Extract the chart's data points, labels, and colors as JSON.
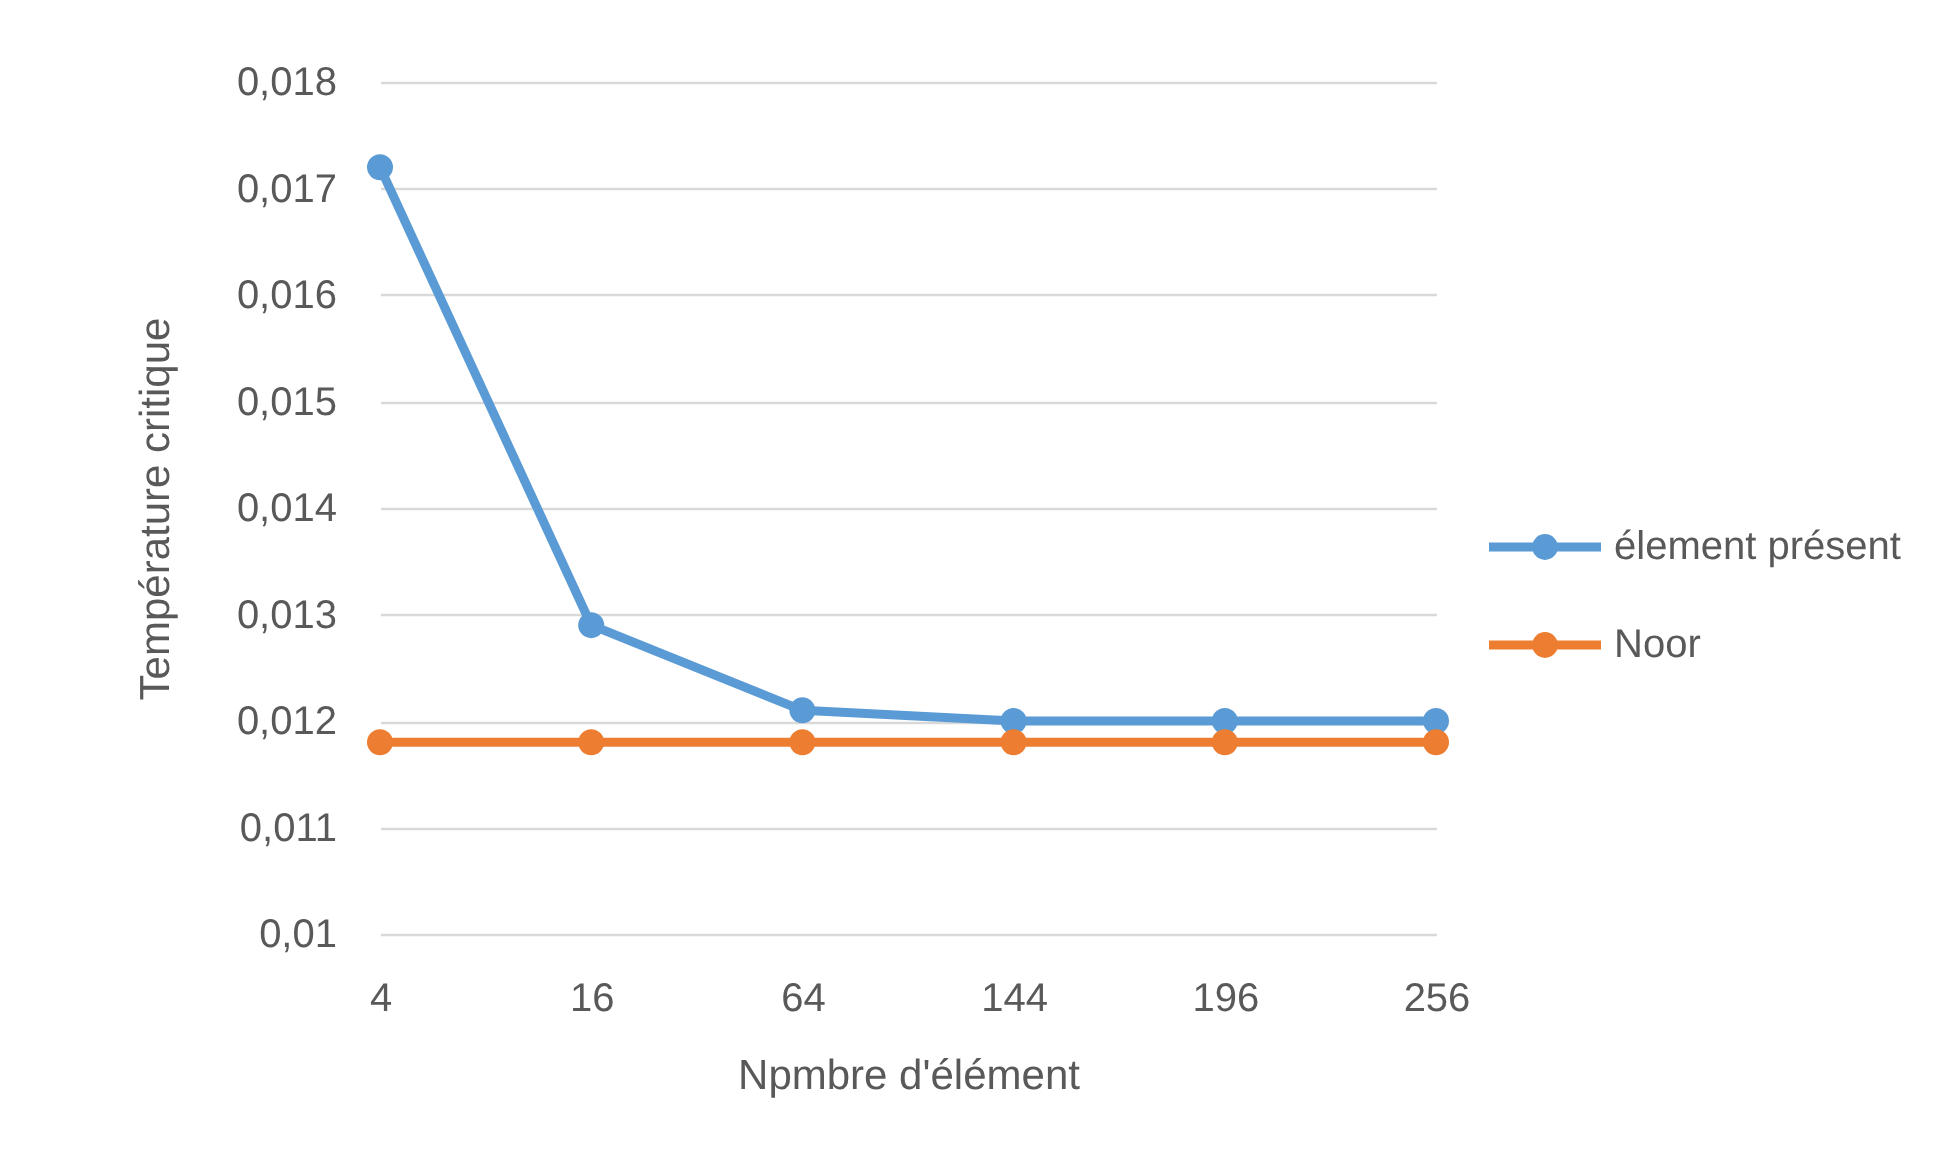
{
  "chart_data": {
    "type": "line",
    "xlabel": "Npmbre d'élément",
    "ylabel": "Température critique",
    "categories": [
      "4",
      "16",
      "64",
      "144",
      "196",
      "256"
    ],
    "series": [
      {
        "name": "élement présent",
        "color": "#5b9bd5",
        "values": [
          0.0172,
          0.0129,
          0.0121,
          0.012,
          0.012,
          0.012
        ]
      },
      {
        "name": "Noor",
        "color": "#ed7d31",
        "values": [
          0.0118,
          0.0118,
          0.0118,
          0.0118,
          0.0118,
          0.0118
        ]
      }
    ],
    "ylim": [
      0.01,
      0.018
    ],
    "yticks": [
      {
        "value": 0.01,
        "label": "0,01"
      },
      {
        "value": 0.011,
        "label": "0,011"
      },
      {
        "value": 0.012,
        "label": "0,012"
      },
      {
        "value": 0.013,
        "label": "0,013"
      },
      {
        "value": 0.014,
        "label": "0,014"
      },
      {
        "value": 0.015,
        "label": "0,015"
      },
      {
        "value": 0.016,
        "label": "0,016"
      },
      {
        "value": 0.017,
        "label": "0,017"
      },
      {
        "value": 0.018,
        "label": "0,018"
      }
    ],
    "grid": "y",
    "legend": "right",
    "marker": "circle",
    "line_style": "solid"
  }
}
